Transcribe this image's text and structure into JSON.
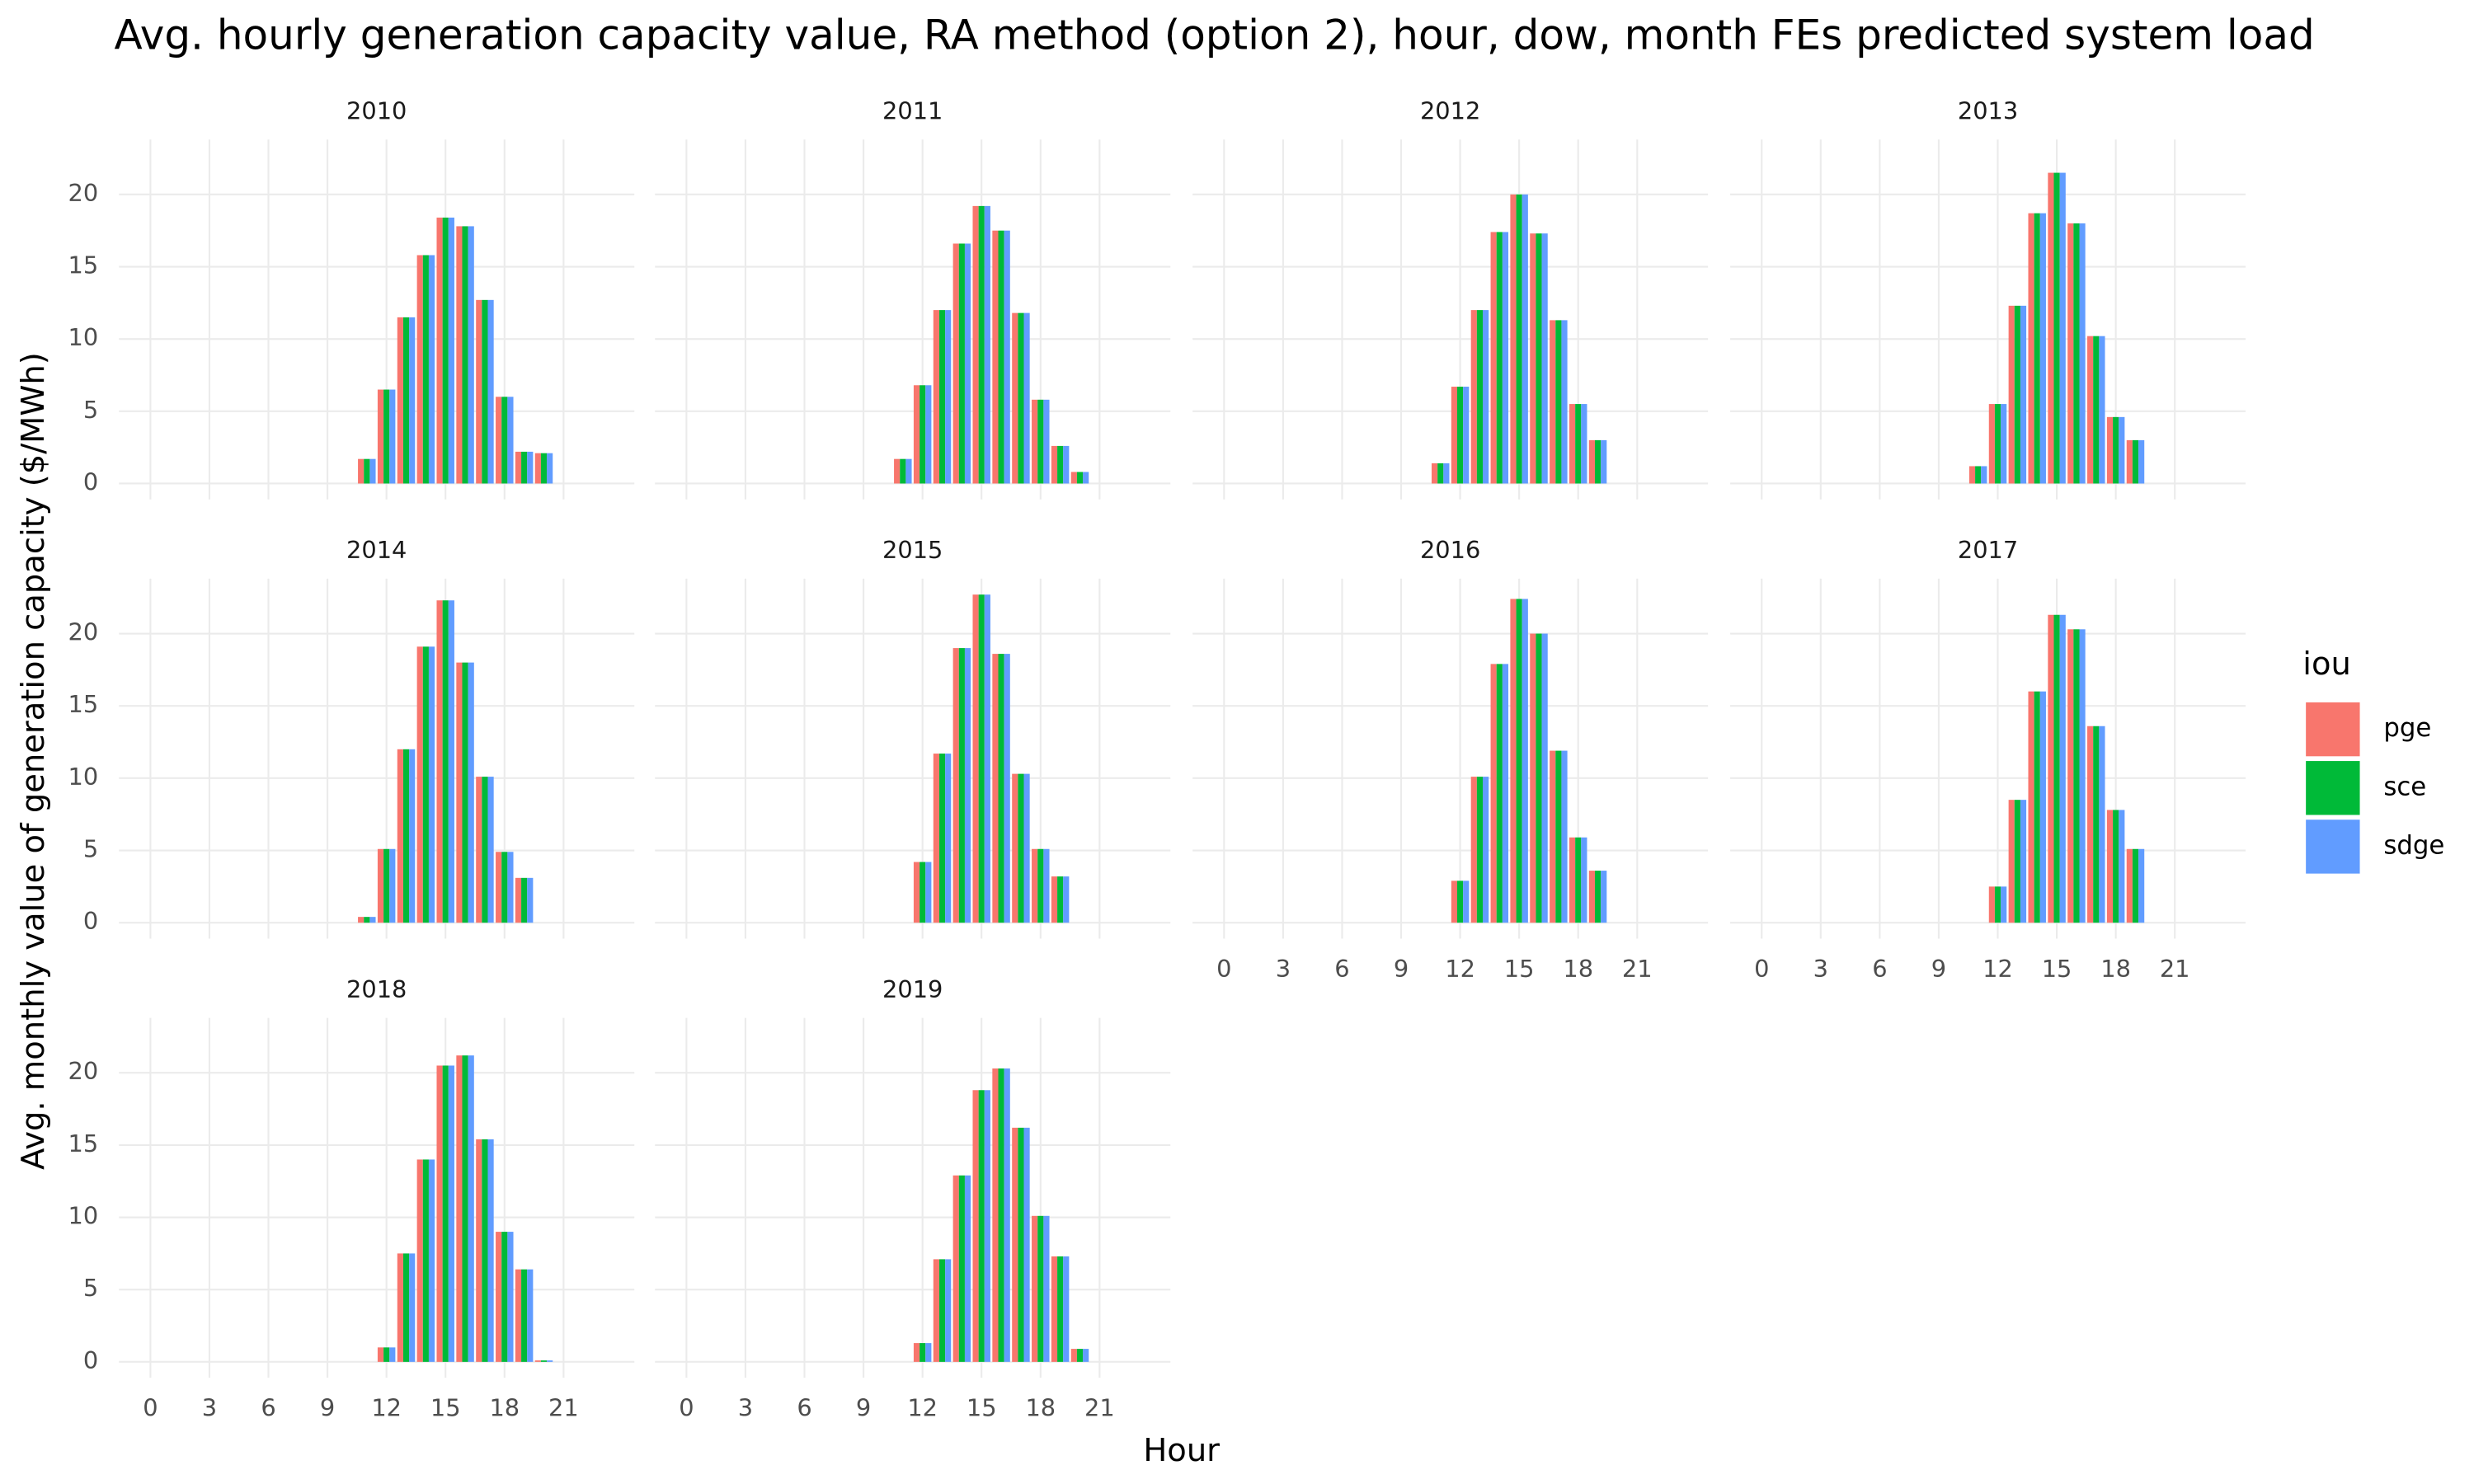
{
  "chart_data": {
    "type": "bar",
    "title": "Avg. hourly generation capacity value, RA method (option 2), hour, dow, month FEs predicted system load",
    "x_label": "Hour",
    "y_label": "Avg. monthly value of generation capacity ($/MWh)",
    "legend": {
      "title": "iou",
      "position": "right"
    },
    "grid": true,
    "x": [
      11,
      12,
      13,
      14,
      15,
      16,
      17,
      18,
      19,
      20
    ],
    "xlim": [
      -1.6,
      24.6
    ],
    "xticks": [
      0,
      3,
      6,
      9,
      12,
      15,
      18,
      21
    ],
    "ylim": [
      -1.1,
      23.8
    ],
    "yticks": [
      0,
      5,
      10,
      15,
      20
    ],
    "series": [
      {
        "name": "pge",
        "color": "#F8766D"
      },
      {
        "name": "sce",
        "color": "#00BA38"
      },
      {
        "name": "sdge",
        "color": "#619CFF"
      }
    ],
    "panels": [
      {
        "title": "2010",
        "series": [
          {
            "values": [
              1.7,
              6.5,
              11.5,
              15.8,
              18.4,
              17.8,
              12.7,
              6.0,
              2.2,
              2.1
            ]
          },
          {
            "values": [
              1.7,
              6.5,
              11.5,
              15.8,
              18.4,
              17.8,
              12.7,
              6.0,
              2.2,
              2.1
            ]
          },
          {
            "values": [
              1.7,
              6.5,
              11.5,
              15.8,
              18.4,
              17.8,
              12.7,
              6.0,
              2.2,
              2.1
            ]
          }
        ]
      },
      {
        "title": "2011",
        "series": [
          {
            "values": [
              1.7,
              6.8,
              12.0,
              16.6,
              19.2,
              17.5,
              11.8,
              5.8,
              2.6,
              0.8
            ]
          },
          {
            "values": [
              1.7,
              6.8,
              12.0,
              16.6,
              19.2,
              17.5,
              11.8,
              5.8,
              2.6,
              0.8
            ]
          },
          {
            "values": [
              1.7,
              6.8,
              12.0,
              16.6,
              19.2,
              17.5,
              11.8,
              5.8,
              2.6,
              0.8
            ]
          }
        ]
      },
      {
        "title": "2012",
        "series": [
          {
            "values": [
              1.4,
              6.7,
              12.0,
              17.4,
              20.0,
              17.3,
              11.3,
              5.5,
              3.0,
              null
            ]
          },
          {
            "values": [
              1.4,
              6.7,
              12.0,
              17.4,
              20.0,
              17.3,
              11.3,
              5.5,
              3.0,
              null
            ]
          },
          {
            "values": [
              1.4,
              6.7,
              12.0,
              17.4,
              20.0,
              17.3,
              11.3,
              5.5,
              3.0,
              null
            ]
          }
        ]
      },
      {
        "title": "2013",
        "series": [
          {
            "values": [
              1.2,
              5.5,
              12.3,
              18.7,
              21.5,
              18.0,
              10.2,
              4.6,
              3.0,
              null
            ]
          },
          {
            "values": [
              1.2,
              5.5,
              12.3,
              18.7,
              21.5,
              18.0,
              10.2,
              4.6,
              3.0,
              null
            ]
          },
          {
            "values": [
              1.2,
              5.5,
              12.3,
              18.7,
              21.5,
              18.0,
              10.2,
              4.6,
              3.0,
              null
            ]
          }
        ]
      },
      {
        "title": "2014",
        "series": [
          {
            "values": [
              0.4,
              5.1,
              12.0,
              19.1,
              22.3,
              18.0,
              10.1,
              4.9,
              3.1,
              null
            ]
          },
          {
            "values": [
              0.4,
              5.1,
              12.0,
              19.1,
              22.3,
              18.0,
              10.1,
              4.9,
              3.1,
              null
            ]
          },
          {
            "values": [
              0.4,
              5.1,
              12.0,
              19.1,
              22.3,
              18.0,
              10.1,
              4.9,
              3.1,
              null
            ]
          }
        ]
      },
      {
        "title": "2015",
        "series": [
          {
            "values": [
              null,
              4.2,
              11.7,
              19.0,
              22.7,
              18.6,
              10.3,
              5.1,
              3.2,
              null
            ]
          },
          {
            "values": [
              null,
              4.2,
              11.7,
              19.0,
              22.7,
              18.6,
              10.3,
              5.1,
              3.2,
              null
            ]
          },
          {
            "values": [
              null,
              4.2,
              11.7,
              19.0,
              22.7,
              18.6,
              10.3,
              5.1,
              3.2,
              null
            ]
          }
        ]
      },
      {
        "title": "2016",
        "series": [
          {
            "values": [
              null,
              2.9,
              10.1,
              17.9,
              22.4,
              20.0,
              11.9,
              5.9,
              3.6,
              null
            ]
          },
          {
            "values": [
              null,
              2.9,
              10.1,
              17.9,
              22.4,
              20.0,
              11.9,
              5.9,
              3.6,
              null
            ]
          },
          {
            "values": [
              null,
              2.9,
              10.1,
              17.9,
              22.4,
              20.0,
              11.9,
              5.9,
              3.6,
              null
            ]
          }
        ]
      },
      {
        "title": "2017",
        "series": [
          {
            "values": [
              null,
              2.5,
              8.5,
              16.0,
              21.3,
              20.3,
              13.6,
              7.8,
              5.1,
              null
            ]
          },
          {
            "values": [
              null,
              2.5,
              8.5,
              16.0,
              21.3,
              20.3,
              13.6,
              7.8,
              5.1,
              null
            ]
          },
          {
            "values": [
              null,
              2.5,
              8.5,
              16.0,
              21.3,
              20.3,
              13.6,
              7.8,
              5.1,
              null
            ]
          }
        ]
      },
      {
        "title": "2018",
        "series": [
          {
            "values": [
              null,
              1.0,
              7.5,
              14.0,
              20.5,
              21.2,
              15.4,
              9.0,
              6.4,
              0.1
            ]
          },
          {
            "values": [
              null,
              1.0,
              7.5,
              14.0,
              20.5,
              21.2,
              15.4,
              9.0,
              6.4,
              0.1
            ]
          },
          {
            "values": [
              null,
              1.0,
              7.5,
              14.0,
              20.5,
              21.2,
              15.4,
              9.0,
              6.4,
              0.1
            ]
          }
        ]
      },
      {
        "title": "2019",
        "series": [
          {
            "values": [
              null,
              1.3,
              7.1,
              12.9,
              18.8,
              20.3,
              16.2,
              10.1,
              7.3,
              0.9
            ]
          },
          {
            "values": [
              null,
              1.3,
              7.1,
              12.9,
              18.8,
              20.3,
              16.2,
              10.1,
              7.3,
              0.9
            ]
          },
          {
            "values": [
              null,
              1.3,
              7.1,
              12.9,
              18.8,
              20.3,
              16.2,
              10.1,
              7.3,
              0.9
            ]
          }
        ]
      }
    ]
  }
}
